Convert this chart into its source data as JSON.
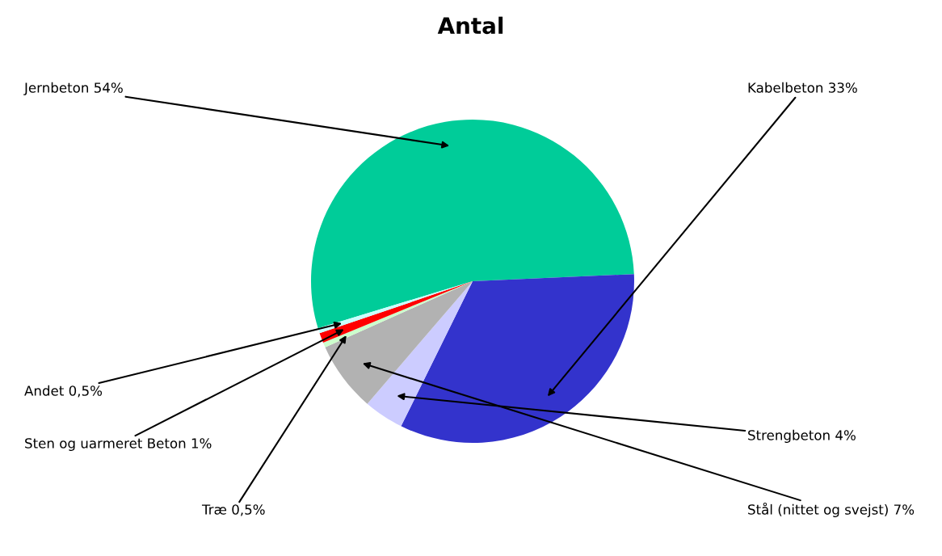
{
  "chart_data": {
    "type": "pie",
    "title": "Antal",
    "categories": [
      "Jernbeton",
      "Kabelbeton",
      "Strengbeton",
      "Stål (nittet og svejst)",
      "Træ",
      "Sten og uarmeret Beton",
      "Andet"
    ],
    "values": [
      54,
      33,
      4,
      7,
      0.5,
      1,
      0.5
    ],
    "value_labels": [
      "54%",
      "33%",
      "4%",
      "7%",
      "0,5%",
      "1%",
      "0,5%"
    ],
    "colors": [
      "#00cc99",
      "#3333cc",
      "#ccccff",
      "#b2b2b2",
      "#ccffcc",
      "#ff0000",
      "#ccffff"
    ],
    "legend": false
  }
}
